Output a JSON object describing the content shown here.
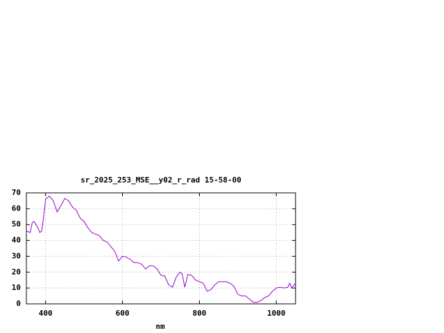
{
  "chart_data": {
    "type": "line",
    "title": "sr_2025_253_MSE__y02_r_rad 15-58-00",
    "x_label": "nm",
    "x": [
      350,
      360,
      365,
      370,
      380,
      385,
      390,
      395,
      400,
      410,
      420,
      430,
      440,
      450,
      460,
      470,
      480,
      490,
      500,
      510,
      520,
      530,
      540,
      550,
      560,
      570,
      580,
      590,
      600,
      610,
      620,
      630,
      640,
      650,
      660,
      670,
      680,
      690,
      700,
      710,
      720,
      730,
      740,
      750,
      755,
      762,
      770,
      780,
      790,
      800,
      810,
      820,
      830,
      840,
      850,
      860,
      870,
      880,
      890,
      900,
      910,
      920,
      930,
      940,
      950,
      960,
      970,
      980,
      990,
      1000,
      1010,
      1020,
      1030,
      1035,
      1040,
      1050
    ],
    "series": [
      {
        "name": null,
        "color": "#9400d3",
        "values": [
          46,
          45,
          51,
          52,
          48,
          45,
          46,
          55,
          66,
          68,
          65,
          58,
          62,
          66.5,
          65,
          61,
          59,
          54,
          52,
          48,
          45,
          44,
          43,
          40,
          39,
          36,
          33,
          27,
          30,
          29.5,
          28,
          26,
          26,
          25,
          22,
          24,
          24,
          22,
          18,
          17.5,
          12,
          10.5,
          17,
          20,
          19,
          10.5,
          18.5,
          18,
          15,
          14,
          13,
          8,
          9,
          12,
          14,
          14,
          14,
          13,
          11,
          6,
          5,
          5,
          3,
          1,
          1,
          2,
          4,
          5,
          8,
          10,
          10.5,
          10,
          10.5,
          13,
          10,
          13
        ]
      }
    ],
    "xlim": [
      350,
      1050
    ],
    "xticks": [
      400,
      600,
      800,
      1000
    ],
    "ylim": [
      0,
      70
    ],
    "yticks": [
      0,
      10,
      20,
      30,
      40,
      50,
      60,
      70
    ],
    "grid": true
  }
}
